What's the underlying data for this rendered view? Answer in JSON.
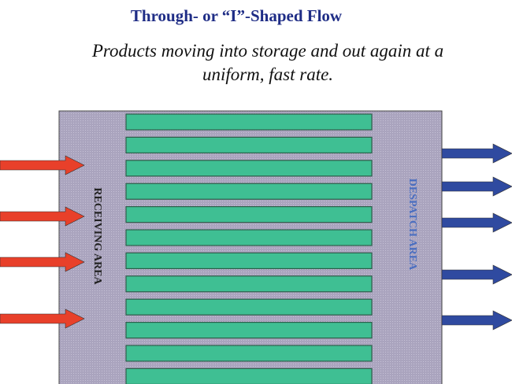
{
  "title": "Through- or “I”-Shaped Flow",
  "subtitle": [
    "Products moving into storage and out again at a",
    "uniform, fast rate."
  ],
  "diagram": {
    "receiving_label": "RECEIVING AREA",
    "despatch_label": "DESPATCH AREA",
    "storage_rack_count": 12,
    "inbound_arrow_count": 4,
    "outbound_arrow_count": 5,
    "colors": {
      "warehouse": "#a9a3bd",
      "rack": "#3fbf93",
      "inbound_arrow": "#e8402a",
      "outbound_arrow": "#2f4aa0",
      "title": "#1f2d86",
      "despatch_text": "#4a6ec0"
    }
  }
}
